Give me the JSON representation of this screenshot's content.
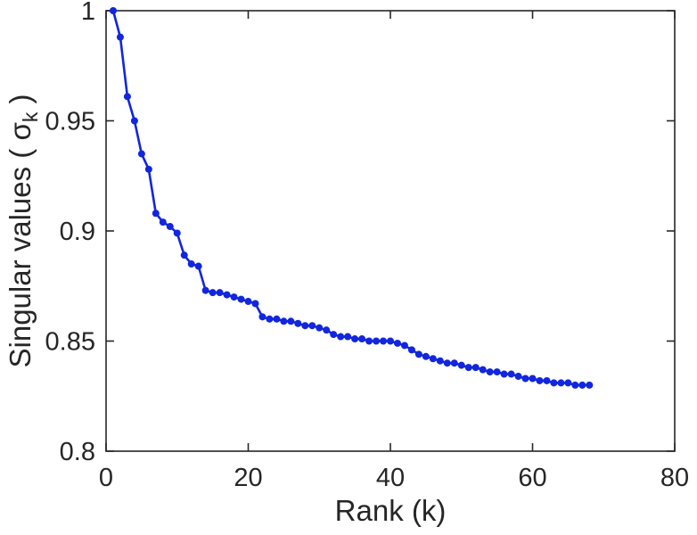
{
  "figure": {
    "background": "#ffffff"
  },
  "chart_data": {
    "type": "line",
    "title": "",
    "xlabel": "Rank (k)",
    "ylabel": "Singular values ( σ_k )",
    "ylabel_parts": {
      "prefix": "Singular values (  ",
      "symbol": "σ",
      "subscript": "k",
      "suffix": " )"
    },
    "xlim": [
      0,
      80
    ],
    "ylim": [
      0.8,
      1.0
    ],
    "xticks": [
      0,
      20,
      40,
      60,
      80
    ],
    "xtick_labels": [
      "0",
      "20",
      "40",
      "60",
      "80"
    ],
    "yticks": [
      0.8,
      0.85,
      0.9,
      0.95,
      1.0
    ],
    "ytick_labels": [
      "0.8",
      "0.85",
      "0.9",
      "0.95",
      "1"
    ],
    "grid": false,
    "legend": null,
    "box": true,
    "line_color": "#1126dd",
    "marker": "dot",
    "marker_size": 4,
    "line_width": 2.6,
    "axis_color": "#262626",
    "x": [
      1,
      2,
      3,
      4,
      5,
      6,
      7,
      8,
      9,
      10,
      11,
      12,
      13,
      14,
      15,
      16,
      17,
      18,
      19,
      20,
      21,
      22,
      23,
      24,
      25,
      26,
      27,
      28,
      29,
      30,
      31,
      32,
      33,
      34,
      35,
      36,
      37,
      38,
      39,
      40,
      41,
      42,
      43,
      44,
      45,
      46,
      47,
      48,
      49,
      50,
      51,
      52,
      53,
      54,
      55,
      56,
      57,
      58,
      59,
      60,
      61,
      62,
      63,
      64,
      65,
      66,
      67,
      68
    ],
    "y": [
      1.0,
      0.988,
      0.961,
      0.95,
      0.935,
      0.928,
      0.908,
      0.904,
      0.902,
      0.899,
      0.889,
      0.885,
      0.884,
      0.873,
      0.872,
      0.872,
      0.871,
      0.87,
      0.869,
      0.868,
      0.867,
      0.861,
      0.86,
      0.86,
      0.859,
      0.859,
      0.858,
      0.857,
      0.857,
      0.856,
      0.855,
      0.853,
      0.852,
      0.852,
      0.851,
      0.851,
      0.85,
      0.85,
      0.85,
      0.85,
      0.849,
      0.848,
      0.846,
      0.844,
      0.843,
      0.842,
      0.841,
      0.84,
      0.84,
      0.839,
      0.838,
      0.838,
      0.837,
      0.836,
      0.836,
      0.835,
      0.835,
      0.834,
      0.833,
      0.833,
      0.832,
      0.832,
      0.831,
      0.831,
      0.831,
      0.83,
      0.83,
      0.83
    ]
  }
}
